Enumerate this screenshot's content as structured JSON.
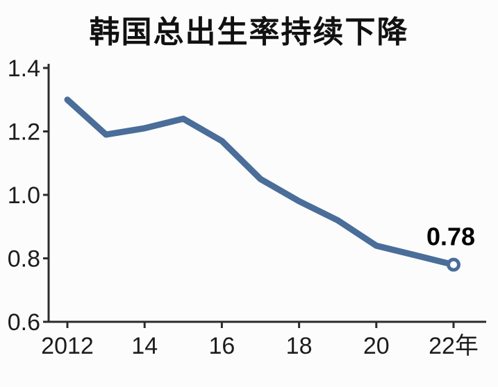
{
  "title": "韩国总出生率持续下降",
  "chart_data": {
    "type": "line",
    "title": "韩国总出生率持续下降",
    "x": [
      2012,
      2013,
      2014,
      2015,
      2016,
      2017,
      2018,
      2019,
      2020,
      2021,
      2022
    ],
    "values": [
      1.3,
      1.19,
      1.21,
      1.24,
      1.17,
      1.05,
      0.98,
      0.92,
      0.84,
      0.81,
      0.78
    ],
    "ylim": [
      0.6,
      1.4
    ],
    "yticks": [
      0.6,
      0.8,
      1.0,
      1.2,
      1.4
    ],
    "ytick_labels": [
      "0.6",
      "0.8",
      "1.0",
      "1.2",
      "1.4"
    ],
    "xtick_positions": [
      2012,
      2014,
      2016,
      2018,
      2020,
      2022
    ],
    "xtick_labels": [
      "2012",
      "14",
      "16",
      "18",
      "20",
      "22年"
    ],
    "annotation": {
      "text": "0.78",
      "x": 2022,
      "y": 0.78
    },
    "line_color": "#4a6d99",
    "axis_color": "#2b2b2b",
    "marker": "open-circle-at-last-point",
    "grid": false,
    "legend": "none"
  }
}
